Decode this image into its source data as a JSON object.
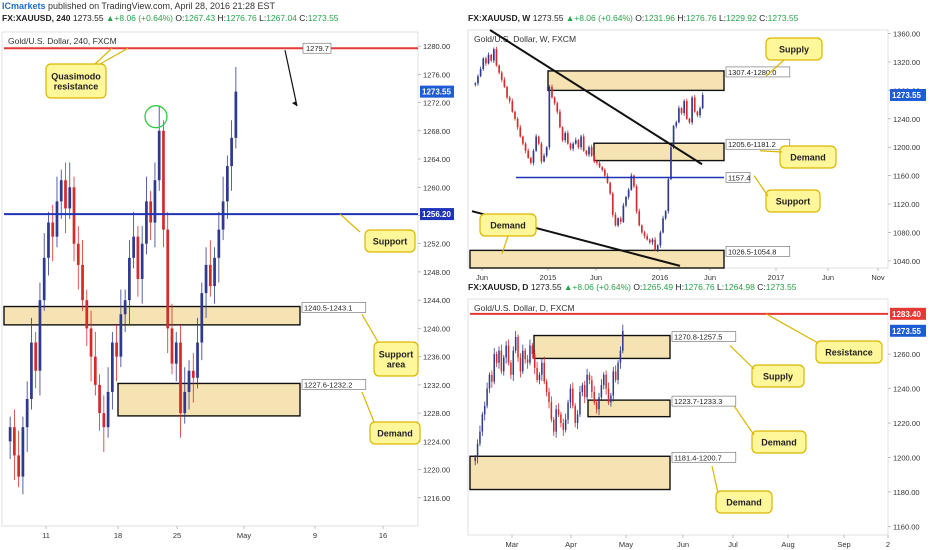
{
  "header": {
    "brand": "ICmarkets",
    "text": " published on TradingView.com, April 28, 2016 21:28 EST"
  },
  "colors": {
    "up": "#2f3a8f",
    "down": "#d62b2b",
    "zone_fill": "#f6e3b4",
    "label_fill": "#fff79a",
    "resistance": "#e53935",
    "support": "#1f33b8",
    "price_tag": "#1e5bd6"
  },
  "panels": [
    {
      "id": "p240",
      "symbol": "FX:XAUUSD, 240",
      "last": "1273.55",
      "change": "+8.06 (+0.64%)",
      "ohlc": [
        "O:",
        "1267.43",
        "H:",
        "1276.76",
        "L:",
        "1267.04",
        "C:",
        "1273.55"
      ],
      "title": "Gold/U.S. Dollar, 240, FXCM",
      "x_ticks": [
        "11",
        "18",
        "25",
        "May",
        "9",
        "16"
      ],
      "y_ticks": [
        "1280.00",
        "1276.00",
        "1272.00",
        "1268.00",
        "1264.00",
        "1260.00",
        "1256.00",
        "1252.00",
        "1248.00",
        "1244.00",
        "1240.00",
        "1236.00",
        "1232.00",
        "1228.00",
        "1224.00",
        "1220.00",
        "1216.00"
      ],
      "price_labels": [
        {
          "text": "1279.7",
          "y": 1279.7,
          "kind": "tag_red"
        },
        {
          "text": "1273.55",
          "y": 1273.55,
          "kind": "price"
        },
        {
          "text": "1256.20",
          "y": 1256.2,
          "kind": "support"
        }
      ],
      "zone_labels": [
        "1240.5-1243.1",
        "1227.6-1232.2"
      ],
      "callouts": [
        "Quasimodo resistance",
        "Support",
        "Support area",
        "Demand"
      ]
    },
    {
      "id": "pW",
      "symbol": "FX:XAUUSD, W",
      "last": "1273.55",
      "change": "+8.06 (+0.64%)",
      "ohlc": [
        "O:",
        "1231.96",
        "H:",
        "1276.76",
        "L:",
        "1229.92",
        "C:",
        "1273.55"
      ],
      "title": "Gold/U.S. Dollar, W, FXCM",
      "x_ticks": [
        "Jun",
        "2015",
        "Jun",
        "2016",
        "Jun",
        "2017",
        "Jun",
        "Nov"
      ],
      "y_ticks": [
        "1360.00",
        "1320.00",
        "1280.00",
        "1240.00",
        "1200.00",
        "1160.00",
        "1120.00",
        "1080.00",
        "1040.00"
      ],
      "price_labels": [
        {
          "text": "1273.55",
          "y": 1273.55,
          "kind": "price"
        }
      ],
      "zone_labels": [
        "1307.4-1280.0",
        "1205.6-1181.2",
        "1157.4",
        "1026.5-1054.8"
      ],
      "callouts": [
        "Supply",
        "Demand",
        "Support",
        "Demand"
      ]
    },
    {
      "id": "pD",
      "symbol": "FX:XAUUSD, D",
      "last": "1273.55",
      "change": "+8.06 (+0.64%)",
      "ohlc": [
        "O:",
        "1265.49",
        "H:",
        "1276.76",
        "L:",
        "1264.98",
        "C:",
        "1273.55"
      ],
      "title": "Gold/U.S. Dollar, D, FXCM",
      "x_ticks": [
        "Mar",
        "Apr",
        "May",
        "Jun",
        "Jul",
        "Aug",
        "Sep",
        "2"
      ],
      "y_ticks": [
        "1260.00",
        "1240.00",
        "1220.00",
        "1200.00",
        "1180.00",
        "1160.00"
      ],
      "price_labels": [
        {
          "text": "1283.40",
          "y": 1283.4,
          "kind": "resist"
        },
        {
          "text": "1273.55",
          "y": 1273.55,
          "kind": "price"
        }
      ],
      "zone_labels": [
        "1270.8-1257.5",
        "1223.7-1233.3",
        "1181.4-1200.7"
      ],
      "callouts": [
        "Resistance",
        "Supply",
        "Demand",
        "Demand"
      ]
    }
  ],
  "chart_data": [
    {
      "type": "candlestick",
      "title": "Gold/U.S. Dollar, 240, FXCM",
      "ylim": [
        1212,
        1282
      ],
      "x_ticks": [
        "11",
        "18",
        "25",
        "May",
        "9",
        "16"
      ],
      "zones": [
        {
          "label": "1240.5-1243.1",
          "low": 1240.5,
          "high": 1243.1
        },
        {
          "label": "1227.6-1232.2",
          "low": 1227.6,
          "high": 1232.2
        }
      ],
      "lines": [
        {
          "label": "1279.7",
          "y": 1279.7,
          "color": "red"
        },
        {
          "label": "1256.20",
          "y": 1256.2,
          "color": "blue"
        }
      ],
      "close_path": [
        1226,
        1222,
        1219,
        1226,
        1230,
        1238,
        1234,
        1244,
        1250,
        1255,
        1253,
        1258,
        1261,
        1257,
        1260,
        1252,
        1249,
        1244,
        1240,
        1236,
        1232,
        1228,
        1226,
        1231,
        1238,
        1236,
        1242,
        1244,
        1250,
        1253,
        1247,
        1252,
        1258,
        1255,
        1261,
        1268,
        1254,
        1240,
        1235,
        1238,
        1228,
        1231,
        1234,
        1233,
        1238,
        1245,
        1249,
        1246,
        1250,
        1254,
        1258,
        1263,
        1267,
        1273.55
      ]
    },
    {
      "type": "candlestick",
      "title": "Gold/U.S. Dollar, W, FXCM",
      "ylim": [
        1030,
        1365
      ],
      "x_ticks": [
        "Jun",
        "2015",
        "Jun",
        "2016",
        "Jun",
        "2017",
        "Jun",
        "Nov"
      ],
      "zones": [
        {
          "label": "1307.4-1280.0",
          "low": 1280.0,
          "high": 1307.4
        },
        {
          "label": "1205.6-1181.2",
          "low": 1181.2,
          "high": 1205.6
        },
        {
          "label": "1026.5-1054.8",
          "low": 1026.5,
          "high": 1054.8
        }
      ],
      "lines": [
        {
          "label": "1157.4",
          "y": 1157.4,
          "color": "blue"
        }
      ],
      "close_path": [
        1290,
        1300,
        1310,
        1325,
        1318,
        1330,
        1322,
        1338,
        1315,
        1305,
        1295,
        1285,
        1270,
        1265,
        1250,
        1240,
        1228,
        1215,
        1205,
        1195,
        1185,
        1178,
        1195,
        1215,
        1205,
        1180,
        1188,
        1200,
        1285,
        1270,
        1262,
        1250,
        1228,
        1210,
        1220,
        1205,
        1198,
        1205,
        1210,
        1200,
        1215,
        1195,
        1190,
        1200,
        1188,
        1180,
        1178,
        1172,
        1168,
        1160,
        1150,
        1135,
        1105,
        1090,
        1100,
        1095,
        1118,
        1130,
        1140,
        1160,
        1145,
        1110,
        1090,
        1080,
        1075,
        1070,
        1066,
        1070,
        1055,
        1062,
        1080,
        1100,
        1110,
        1155,
        1200,
        1230,
        1235,
        1255,
        1248,
        1265,
        1240,
        1235,
        1270,
        1250,
        1245,
        1255,
        1273.55
      ]
    },
    {
      "type": "candlestick",
      "title": "Gold/U.S. Dollar, D, FXCM",
      "ylim": [
        1155,
        1292
      ],
      "x_ticks": [
        "Mar",
        "Apr",
        "May",
        "Jun",
        "Jul",
        "Aug",
        "Sep",
        "2"
      ],
      "zones": [
        {
          "label": "1270.8-1257.5",
          "low": 1257.5,
          "high": 1270.8
        },
        {
          "label": "1223.7-1233.3",
          "low": 1223.7,
          "high": 1233.3
        },
        {
          "label": "1181.4-1200.7",
          "low": 1181.4,
          "high": 1200.7
        }
      ],
      "lines": [
        {
          "label": "1283.40",
          "y": 1283.4,
          "color": "red"
        }
      ],
      "close_path": [
        1200,
        1208,
        1215,
        1225,
        1230,
        1240,
        1248,
        1244,
        1260,
        1255,
        1262,
        1250,
        1258,
        1265,
        1255,
        1248,
        1262,
        1270,
        1258,
        1250,
        1262,
        1257,
        1255,
        1265,
        1260,
        1252,
        1245,
        1248,
        1255,
        1244,
        1238,
        1232,
        1222,
        1215,
        1228,
        1225,
        1220,
        1216,
        1222,
        1232,
        1240,
        1230,
        1220,
        1225,
        1238,
        1242,
        1235,
        1248,
        1245,
        1238,
        1232,
        1228,
        1235,
        1242,
        1248,
        1240,
        1232,
        1236,
        1250,
        1245,
        1255,
        1262,
        1273.55
      ]
    }
  ]
}
